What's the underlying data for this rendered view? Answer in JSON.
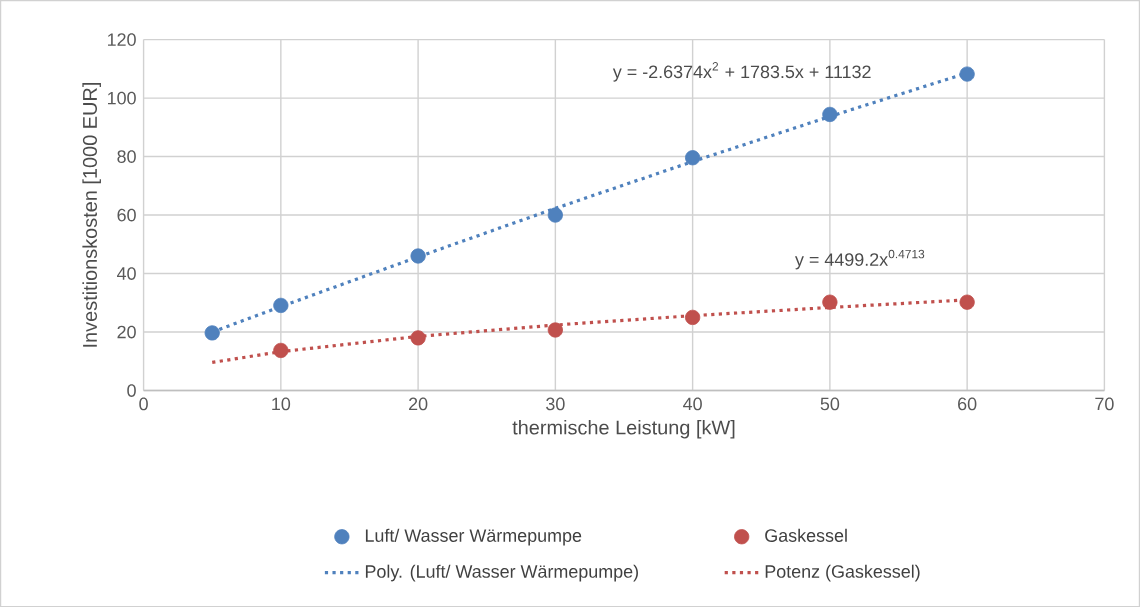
{
  "chart_data": {
    "type": "scatter",
    "xlabel": "thermische Leistung [kW]",
    "ylabel": "Investitionskosten [1000 EUR]",
    "xlim": [
      0,
      70
    ],
    "xticks": [
      0,
      10,
      20,
      30,
      40,
      50,
      60,
      70
    ],
    "ylim": [
      0,
      120
    ],
    "yticks": [
      0,
      20,
      40,
      60,
      80,
      100,
      120
    ],
    "grid": true,
    "legend": "bottom",
    "series": [
      {
        "name": "Luft/ Wasser Wärmepumpe",
        "marker": "circle",
        "color": "#4f81bd",
        "x": [
          5,
          10,
          20,
          30,
          40,
          50,
          60
        ],
        "values": [
          19.7,
          29.1,
          46.0,
          60.0,
          79.6,
          94.4,
          108.2
        ]
      },
      {
        "name": "Gaskessel",
        "marker": "circle",
        "color": "#c0504d",
        "x": [
          10,
          20,
          30,
          40,
          50,
          60
        ],
        "values": [
          13.7,
          18.0,
          20.7,
          25.0,
          30.2,
          30.2
        ]
      },
      {
        "name": "Poly. (Luft/ Wasser Wärmepumpe)",
        "type": "line",
        "marker": "none",
        "line_style": "dotted",
        "color": "#4f81bd",
        "x": [
          5,
          10,
          20,
          30,
          40,
          50,
          60
        ],
        "values": [
          20.0,
          28.7,
          45.7,
          62.3,
          78.3,
          93.7,
          108.6
        ]
      },
      {
        "name": "Potenz (Gaskessel)",
        "type": "line",
        "marker": "none",
        "line_style": "dotted",
        "color": "#c0504d",
        "x": [
          5,
          10,
          20,
          30,
          40,
          50,
          60
        ],
        "values": [
          9.6,
          13.3,
          18.5,
          22.4,
          25.6,
          28.4,
          31.0
        ]
      }
    ],
    "annotations": [
      "y = -2.6374x$^{2}$ + 1783.5x + 11132",
      "y = 4499.2x$^{0.4713}$"
    ]
  }
}
